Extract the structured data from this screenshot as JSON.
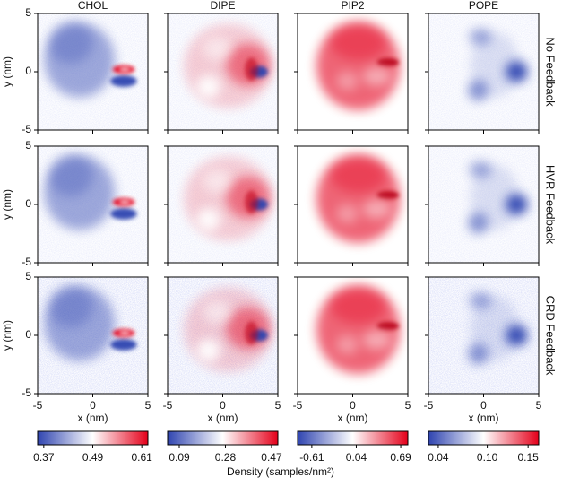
{
  "chart_data": {
    "type": "heatmap-grid",
    "columns": [
      "CHOL",
      "DIPE",
      "PIP2",
      "POPE"
    ],
    "rows": [
      "No Feedback",
      "HVR Feedback",
      "CRD Feedback"
    ],
    "xlabel": "x (nm)",
    "ylabel": "y (nm)",
    "xlim": [
      -5,
      5
    ],
    "ylim": [
      -5,
      5
    ],
    "xticks": [
      -5,
      0,
      5
    ],
    "yticks": [
      -5,
      0,
      5
    ],
    "cmap": [
      "#2f44b0",
      "#ffffff",
      "#e4001a"
    ],
    "colorbars": [
      {
        "lim": [
          0.355,
          0.625
        ],
        "ticks": [
          0.37,
          0.49,
          0.61
        ]
      },
      {
        "lim": [
          0.042,
          0.496
        ],
        "ticks": [
          0.09,
          0.28,
          0.47
        ]
      },
      {
        "lim": [
          -0.818,
          0.794
        ],
        "ticks": [
          -0.61,
          0.04,
          0.69
        ]
      },
      {
        "lim": [
          0.028,
          0.163
        ],
        "ticks": [
          0.04,
          0.1,
          0.15
        ]
      }
    ],
    "colorbar_label": "Density (samples/nm²)"
  }
}
